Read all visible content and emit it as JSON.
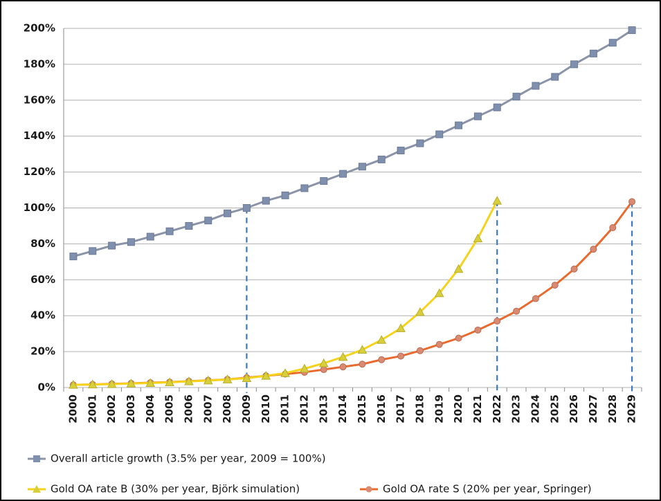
{
  "chart_data": {
    "type": "line",
    "categories": [
      "2000",
      "2001",
      "2002",
      "2003",
      "2004",
      "2005",
      "2006",
      "2007",
      "2008",
      "2009",
      "2010",
      "2011",
      "2012",
      "2013",
      "2014",
      "2015",
      "2016",
      "2017",
      "2018",
      "2019",
      "2020",
      "2021",
      "2022",
      "2023",
      "2024",
      "2025",
      "2026",
      "2027",
      "2028",
      "2029"
    ],
    "series": [
      {
        "name": "Overall article growth (3.5% per year, 2009 = 100%)",
        "color": "#8a94a6",
        "marker": "square",
        "values": [
          73,
          76,
          79,
          81,
          84,
          87,
          90,
          93,
          97,
          100,
          104,
          107,
          111,
          115,
          119,
          123,
          127,
          132,
          136,
          141,
          146,
          151,
          156,
          162,
          168,
          173,
          180,
          186,
          192,
          199
        ]
      },
      {
        "name": "Gold OA rate B (30% per year, Björk simulation)",
        "color": "#f5d31a",
        "marker": "triangle",
        "values": [
          1.5,
          1.7,
          1.9,
          2.2,
          2.5,
          2.9,
          3.4,
          3.9,
          4.5,
          5.2,
          6.5,
          8,
          10.5,
          13.5,
          17,
          21,
          26.5,
          33,
          42,
          52.5,
          66,
          83,
          104,
          null,
          null,
          null,
          null,
          null,
          null,
          null
        ]
      },
      {
        "name": "Gold OA rate S (20% per year, Springer)",
        "color": "#ea6a2e",
        "marker": "circle",
        "values": [
          1.5,
          1.7,
          2,
          2.3,
          2.7,
          3,
          3.5,
          4,
          4.5,
          5.5,
          6.5,
          7.5,
          8.5,
          10,
          11.5,
          13,
          15.5,
          17.5,
          20.5,
          24,
          27.5,
          32,
          37,
          42.5,
          49.5,
          57,
          66,
          77,
          89,
          103.5
        ]
      }
    ],
    "drop_lines": [
      {
        "category": "2009",
        "series": 0
      },
      {
        "category": "2022",
        "series": 1
      },
      {
        "category": "2029",
        "series": 2
      }
    ],
    "ylim": [
      0,
      200
    ],
    "yticks": [
      {
        "value": 0,
        "label": "0%"
      },
      {
        "value": 20,
        "label": "20%"
      },
      {
        "value": 40,
        "label": "40%"
      },
      {
        "value": 60,
        "label": "60%"
      },
      {
        "value": 80,
        "label": "80%"
      },
      {
        "value": 100,
        "label": "100%"
      },
      {
        "value": 120,
        "label": "120%"
      },
      {
        "value": 140,
        "label": "140%"
      },
      {
        "value": 160,
        "label": "160%"
      },
      {
        "value": 180,
        "label": "180%"
      },
      {
        "value": 200,
        "label": "200%"
      }
    ],
    "grid": true
  }
}
